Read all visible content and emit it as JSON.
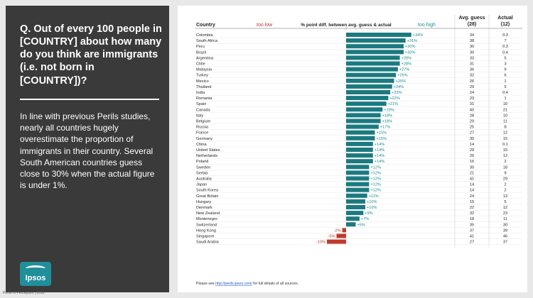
{
  "left_panel": {
    "question": "Q. Out of every 100 people in [COUNTRY] about how many do you think are immigrants (i.e. not born in [COUNTRY])?",
    "description": "In line with previous Perils studies, nearly all countries hugely overestimate the proportion of immigrants in their country. Several South American countries guess close to 30% when the actual figure is under 1%.",
    "logo_text": "Ipsos"
  },
  "footer": {
    "left_text": "Perils of Perception | 2018",
    "note_prefix": "Please see ",
    "note_link": "http://perils.ipsos.com/",
    "note_suffix": " for full details of all sources."
  },
  "chart_data": {
    "type": "bar",
    "orientation": "horizontal",
    "header_country": "Country",
    "header_low": "too low",
    "header_title": "% point diff. between avg. guess & actual",
    "header_high": "too high",
    "header_guess": "Avg. guess (28)",
    "header_actual": "Actual (12)",
    "colors": {
      "positive": "#1b7a80",
      "negative": "#c0392b",
      "low_label": "#c0392b",
      "high_label": "#1b8a90"
    },
    "categories": [
      "Colombia",
      "South Africa",
      "Peru",
      "Brazil",
      "Argentina",
      "Chile",
      "Malaysia",
      "Turkey",
      "Mexico",
      "Thailand",
      "India",
      "Romania",
      "Spain",
      "Canada",
      "Italy",
      "Belgium",
      "Russia",
      "France",
      "Germany",
      "China",
      "United States",
      "Netherlands",
      "Poland",
      "Sweden",
      "Serbia",
      "Australia",
      "Japan",
      "South Korea",
      "Great Britain",
      "Hungary",
      "Denmark",
      "New Zealand",
      "Montenegro",
      "Switzerland",
      "Hong Kong",
      "Singapore",
      "Saudi Arabia"
    ],
    "values": [
      34,
      31,
      30,
      30,
      28,
      28,
      27,
      26,
      25,
      24,
      23,
      22,
      21,
      19,
      18,
      18,
      17,
      15,
      15,
      14,
      14,
      14,
      14,
      12,
      12,
      12,
      12,
      12,
      11,
      10,
      10,
      9,
      7,
      5,
      -2,
      -5,
      -10
    ],
    "value_labels": [
      "+34%",
      "+31%",
      "+30%",
      "+30%",
      "+28%",
      "+28%",
      "+27%",
      "+26%",
      "+25%",
      "+24%",
      "+23%",
      "+22%",
      "+21%",
      "+19%",
      "+18%",
      "+18%",
      "+17%",
      "+15%",
      "+15%",
      "+14%",
      "+14%",
      "+14%",
      "+14%",
      "+12%",
      "+12%",
      "+12%",
      "+12%",
      "+12%",
      "+11%",
      "+10%",
      "+10%",
      "+9%",
      "+7%",
      "+5%",
      "-2%",
      "-5%",
      "-10%"
    ],
    "avg_guess": [
      "34",
      "38",
      "30",
      "30",
      "33",
      "31",
      "36",
      "32",
      "26",
      "29",
      "24",
      "23",
      "31",
      "40",
      "28",
      "29",
      "25",
      "27",
      "30",
      "14",
      "29",
      "26",
      "16",
      "30",
      "21",
      "41",
      "14",
      "14",
      "24",
      "15",
      "22",
      "32",
      "18",
      "35",
      "37",
      "41",
      "27"
    ],
    "actual": [
      "0.3",
      "7",
      "0.3",
      "0.4",
      "5",
      "3",
      "9",
      "6",
      "1",
      "5",
      "0.4",
      "1",
      "10",
      "21",
      "10",
      "11",
      "8",
      "12",
      "15",
      "0.1",
      "15",
      "12",
      "2",
      "18",
      "9",
      "29",
      "2",
      "2",
      "13",
      "5",
      "12",
      "23",
      "11",
      "30",
      "39",
      "46",
      "37"
    ]
  }
}
